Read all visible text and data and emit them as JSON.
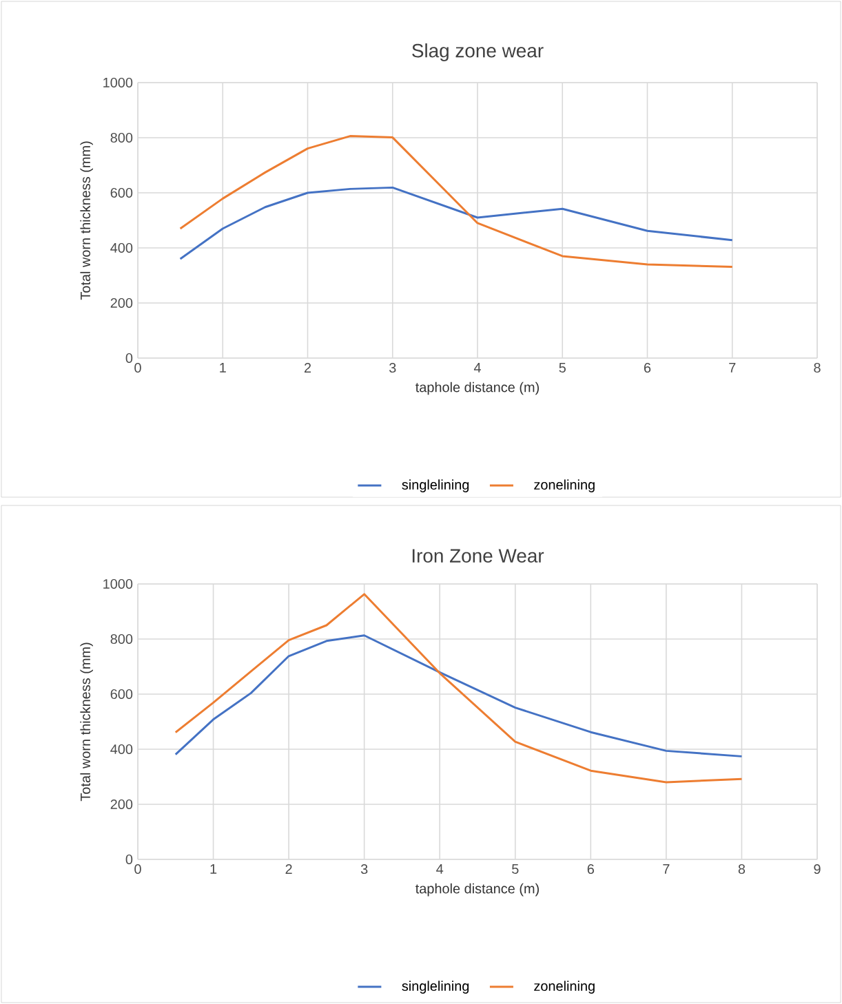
{
  "chart_data": [
    {
      "type": "line",
      "title": "Slag zone wear",
      "xlabel": "taphole distance (m)",
      "ylabel": "Total worn thickness (mm)",
      "xlim": [
        0,
        8
      ],
      "ylim": [
        0,
        1000
      ],
      "xticks": [
        0,
        1,
        2,
        3,
        4,
        5,
        6,
        7,
        8
      ],
      "yticks": [
        0,
        200,
        400,
        600,
        800,
        1000
      ],
      "grid": true,
      "legend": "bottom",
      "series": [
        {
          "name": "singlelining",
          "color": "#4472c4",
          "x": [
            0.5,
            1,
            1.5,
            2,
            2.5,
            3,
            4,
            5,
            6,
            7
          ],
          "values": [
            360,
            470,
            548,
            600,
            614,
            619,
            510,
            542,
            462,
            428
          ]
        },
        {
          "name": "zonelining",
          "color": "#ed7d31",
          "x": [
            0.5,
            1,
            1.5,
            2,
            2.5,
            3,
            4,
            5,
            6,
            7
          ],
          "values": [
            470,
            579,
            674,
            761,
            806,
            801,
            490,
            370,
            340,
            331
          ]
        }
      ]
    },
    {
      "type": "line",
      "title": "Iron Zone Wear",
      "xlabel": "taphole distance (m)",
      "ylabel": "Total worn  thickness (mm)",
      "xlim": [
        0,
        9
      ],
      "ylim": [
        0,
        1000
      ],
      "xticks": [
        0,
        1,
        2,
        3,
        4,
        5,
        6,
        7,
        8,
        9
      ],
      "yticks": [
        0,
        200,
        400,
        600,
        800,
        1000
      ],
      "grid": true,
      "legend": "bottom",
      "series": [
        {
          "name": "singlelining",
          "color": "#4472c4",
          "x": [
            0.5,
            1,
            1.5,
            2,
            2.5,
            3,
            4,
            5,
            6,
            7,
            8
          ],
          "values": [
            381,
            508,
            604,
            738,
            793,
            813,
            679,
            551,
            462,
            394,
            374
          ]
        },
        {
          "name": "zonelining",
          "color": "#ed7d31",
          "x": [
            0.5,
            1,
            1.5,
            2,
            2.5,
            3,
            4,
            5,
            6,
            7,
            8
          ],
          "values": [
            461,
            569,
            683,
            796,
            850,
            963,
            676,
            427,
            322,
            280,
            292
          ]
        }
      ]
    }
  ]
}
